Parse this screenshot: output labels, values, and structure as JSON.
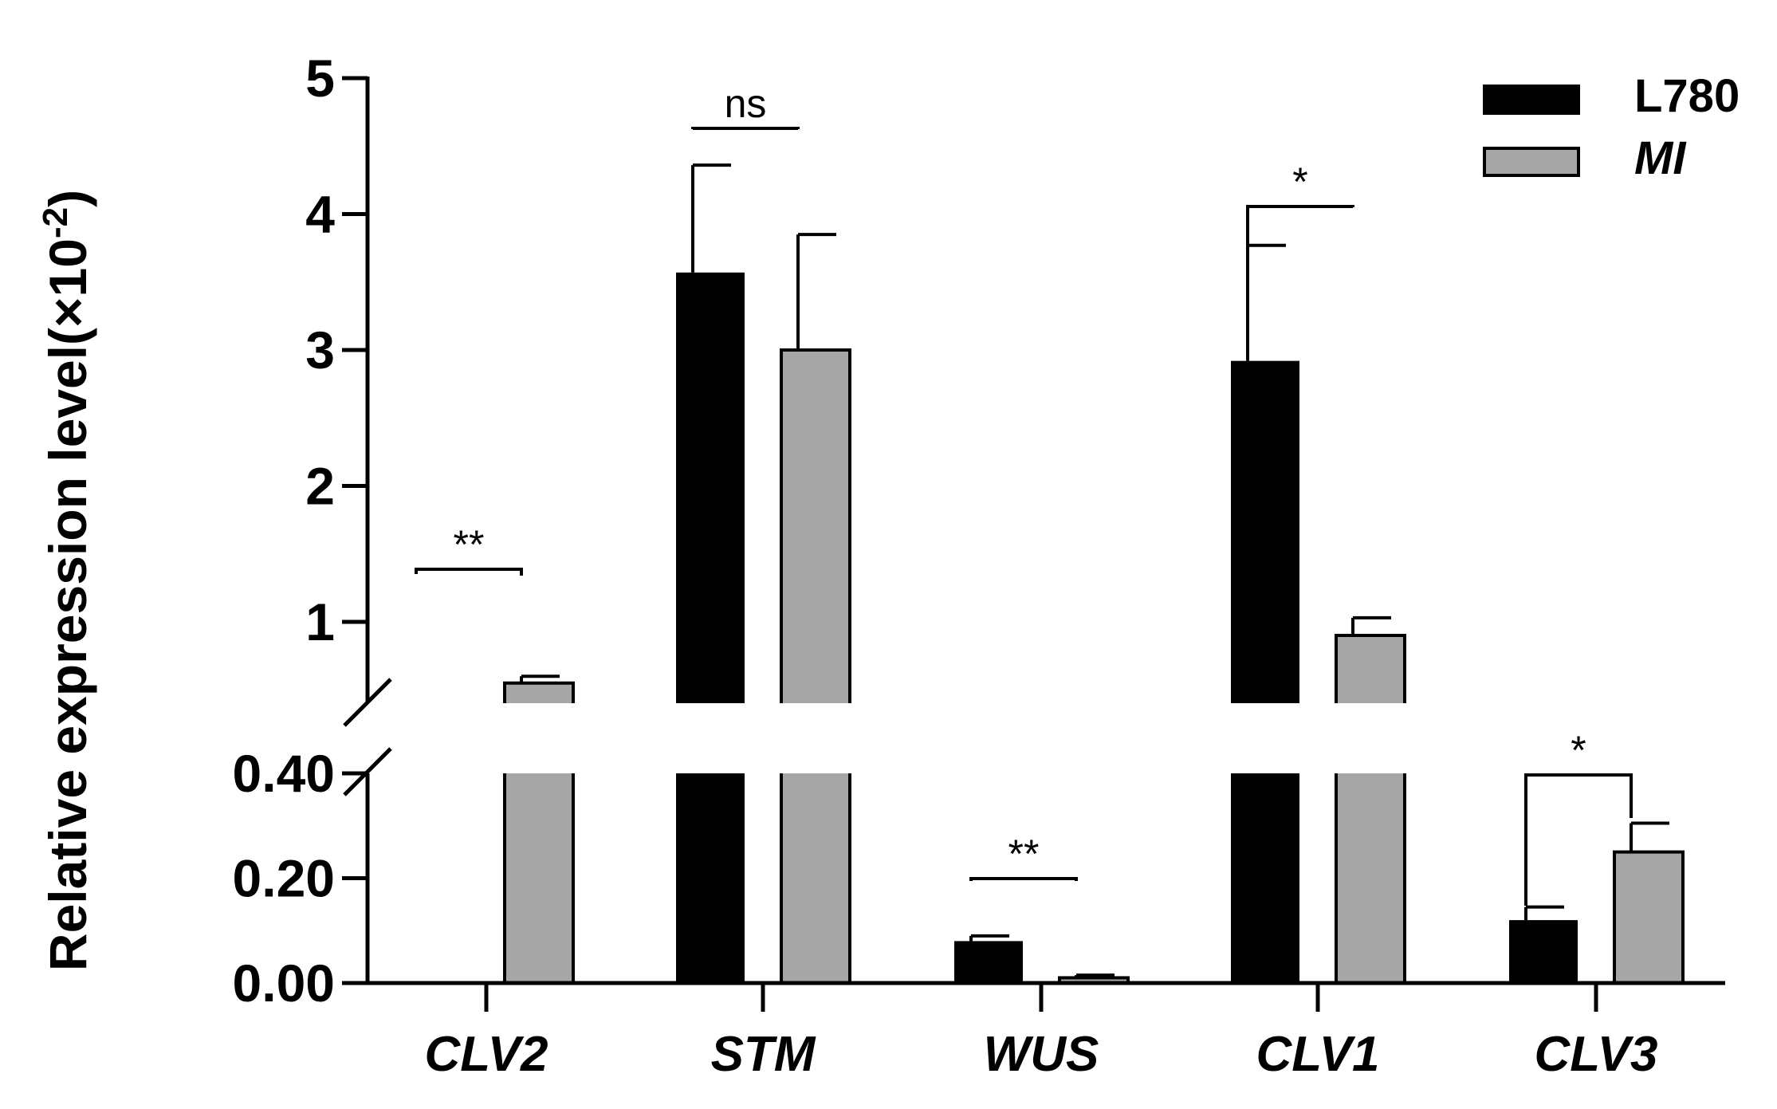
{
  "chart_data": {
    "type": "bar",
    "title": "",
    "xlabel": "",
    "ylabel": "Relative expression level(×10",
    "ylabel_superscript": "-2",
    "ylabel_close": ")",
    "categories": [
      "CLV2",
      "STM",
      "WUS",
      "CLV1",
      "CLV3"
    ],
    "series": [
      {
        "name": "L780",
        "color": "#000000",
        "italic": false,
        "values": [
          0.0,
          3.57,
          0.08,
          2.92,
          0.12
        ],
        "errors": [
          0.0,
          0.79,
          0.01,
          0.85,
          0.025
        ]
      },
      {
        "name": "MI",
        "color": "#a6a6a6",
        "italic": true,
        "values": [
          0.55,
          3.0,
          0.01,
          0.9,
          0.25
        ],
        "errors": [
          0.05,
          0.85,
          0.005,
          0.13,
          0.055
        ]
      }
    ],
    "significance": [
      "**",
      "ns",
      "**",
      "*",
      "*"
    ],
    "axis_break": {
      "lower_range": [
        0,
        0.4
      ],
      "upper_range": [
        0.4,
        5
      ]
    },
    "lower_ticks": [
      "0.00",
      "0.20",
      "0.40"
    ],
    "upper_ticks": [
      "1",
      "2",
      "3",
      "4",
      "5"
    ],
    "legend_position": "top-right",
    "grid": false
  }
}
